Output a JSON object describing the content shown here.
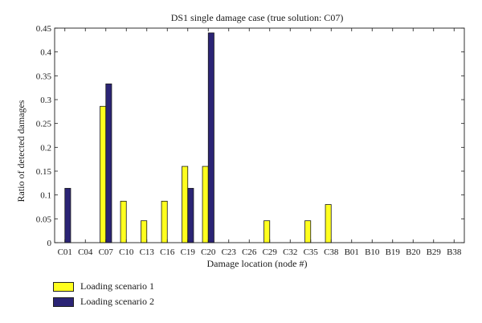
{
  "chart_data": {
    "type": "bar",
    "title": "DS1 single damage case (true solution: C07)",
    "xlabel": "Damage location (node #)",
    "ylabel": "Ratio of detected damages",
    "ylim": [
      0,
      0.45
    ],
    "yticks": [
      "0",
      "0.05",
      "0.1",
      "0.15",
      "0.2",
      "0.25",
      "0.3",
      "0.35",
      "0.4",
      "0.45"
    ],
    "categories": [
      "C01",
      "C04",
      "C07",
      "C10",
      "C13",
      "C16",
      "C19",
      "C20",
      "C23",
      "C26",
      "C29",
      "C32",
      "C35",
      "C38",
      "B01",
      "B10",
      "B19",
      "B20",
      "B29",
      "B38"
    ],
    "series": [
      {
        "name": "Loading scenario 1",
        "color": "#ffff1e",
        "values": [
          0,
          0,
          0.286,
          0.087,
          0.046,
          0.087,
          0.16,
          0.16,
          0,
          0,
          0.046,
          0,
          0.046,
          0.08,
          0,
          0,
          0,
          0,
          0,
          0
        ]
      },
      {
        "name": "Loading scenario 2",
        "color": "#2b2475",
        "values": [
          0.114,
          0,
          0.333,
          0,
          0,
          0,
          0.114,
          0.44,
          0,
          0,
          0,
          0,
          0,
          0,
          0,
          0,
          0,
          0,
          0,
          0
        ]
      }
    ],
    "grid": false,
    "legend_position": "bottom-left"
  }
}
